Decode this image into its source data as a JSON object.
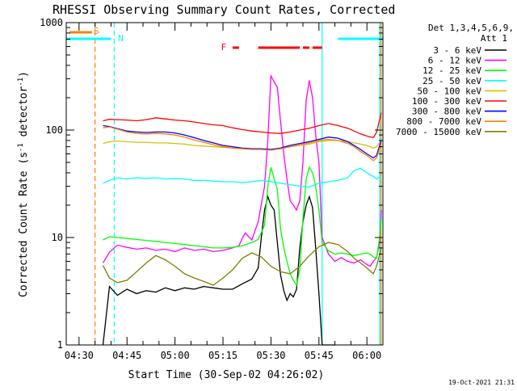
{
  "chart_data": {
    "type": "line",
    "title": "RHESSI Observing Summary Count Rates, Corrected",
    "xlabel": "Start Time (30-Sep-02 04:26:02)",
    "ylabel": "Corrected Count Rate (s⁻¹ detector⁻¹)",
    "ylabel_parts": {
      "main": "Corrected Count Rate (s",
      "exp1": "-1",
      "mid": " detector",
      "exp2": "-1",
      "end": ")"
    },
    "y_scale": "log",
    "ylim": [
      1,
      1000
    ],
    "xlim_minutes": [
      266,
      365
    ],
    "x_ticks": [
      {
        "label": "04:30",
        "min": 270
      },
      {
        "label": "04:45",
        "min": 285
      },
      {
        "label": "05:00",
        "min": 300
      },
      {
        "label": "05:15",
        "min": 315
      },
      {
        "label": "05:30",
        "min": 330
      },
      {
        "label": "05:45",
        "min": 345
      },
      {
        "label": "06:00",
        "min": 360
      }
    ],
    "y_ticks": [
      {
        "label": "1",
        "v": 1
      },
      {
        "label": "10",
        "v": 10
      },
      {
        "label": "100",
        "v": 100
      },
      {
        "label": "1000",
        "v": 1000
      }
    ],
    "detectors_line1": "Det 1,3,4,5,6,9,",
    "detectors_line2": "Att 1",
    "timestamp": "19-Oct-2021 21:31",
    "flags": {
      "saa_label": "S",
      "night_label": "N",
      "flare_label": "F",
      "night_segments": [
        [
          266,
          280
        ],
        [
          351,
          365
        ]
      ],
      "saa_segments": [
        [
          267,
          274
        ]
      ],
      "flare_segments": [
        [
          318,
          320
        ],
        [
          326,
          339
        ],
        [
          340,
          342
        ],
        [
          343,
          346
        ]
      ]
    },
    "markers": [
      {
        "kind": "saa_boundary",
        "min": 275,
        "color": "#ff8000",
        "style": "dashed"
      },
      {
        "kind": "night_boundary",
        "min": 281,
        "color": "#00ffff",
        "style": "dashed"
      },
      {
        "kind": "night_boundary",
        "min": 346,
        "color": "#00ffff",
        "style": "solid"
      },
      {
        "kind": "night_boundary",
        "min": 364,
        "color": "#00ffff",
        "style": "solid"
      },
      {
        "kind": "saa_boundary",
        "min": 364.4,
        "color": "#ff8000",
        "style": "solid"
      }
    ],
    "series": [
      {
        "name": "3 - 6 keV",
        "color": "#000000",
        "x": [
          277.5,
          279.5,
          282,
          285,
          288,
          291,
          294,
          297,
          300,
          303,
          306,
          309,
          312,
          315,
          318,
          321,
          324,
          326,
          327,
          328,
          329,
          330,
          331,
          332,
          333,
          334,
          335,
          336,
          337,
          338,
          339,
          340,
          341,
          342,
          343,
          344,
          345,
          346,
          347,
          348,
          349,
          350
        ],
        "y": [
          1,
          3.5,
          2.9,
          3.3,
          3,
          3.2,
          3.1,
          3.4,
          3.2,
          3.4,
          3.3,
          3.5,
          3.4,
          3.3,
          3.3,
          3.7,
          4.1,
          5.2,
          10,
          18,
          24,
          20,
          18,
          9,
          4.5,
          3.2,
          2.6,
          3,
          2.8,
          3.3,
          8,
          14,
          20,
          24,
          19,
          8,
          3,
          1,
          1,
          1,
          1,
          1
        ]
      },
      {
        "name": "6 - 12 keV",
        "color": "#ff00ff",
        "x": [
          277.5,
          279.5,
          282,
          285,
          288,
          291,
          294,
          297,
          300,
          303,
          306,
          309,
          312,
          315,
          318,
          320,
          321,
          322,
          324,
          326,
          328,
          329,
          330,
          331,
          332,
          333,
          334,
          335,
          336,
          337,
          338,
          339,
          340,
          341,
          342,
          343,
          344,
          345,
          346,
          348,
          350,
          352,
          354,
          356,
          358,
          360,
          361,
          362,
          363,
          364,
          364.5
        ],
        "y": [
          5.8,
          7.3,
          8.5,
          8.1,
          7.8,
          8,
          7.6,
          7.8,
          7.4,
          8,
          7.6,
          7.8,
          7.4,
          7.6,
          8,
          8.4,
          9.8,
          11,
          9.5,
          14,
          30,
          80,
          320,
          280,
          250,
          120,
          60,
          35,
          22,
          20,
          18,
          22,
          50,
          190,
          290,
          200,
          90,
          50,
          10,
          7,
          6,
          6.5,
          6,
          5.8,
          6.2,
          5.6,
          5.4,
          6,
          6.5,
          9,
          18
        ]
      },
      {
        "name": "12 - 25 keV",
        "color": "#00ff00",
        "x": [
          277.5,
          279.5,
          282,
          285,
          288,
          291,
          294,
          297,
          300,
          303,
          306,
          309,
          312,
          315,
          318,
          321,
          324,
          326,
          328,
          329,
          330,
          331,
          332,
          333,
          334,
          335,
          336,
          337,
          338,
          339,
          340,
          341,
          342,
          343,
          344,
          345,
          346,
          348,
          350,
          352,
          354,
          356,
          358,
          360,
          361,
          362,
          363,
          364,
          364.5
        ],
        "y": [
          9.5,
          10.2,
          10,
          9.8,
          9.6,
          9.4,
          9.2,
          9,
          8.8,
          8.6,
          8.4,
          8.2,
          8,
          8,
          8.1,
          8.4,
          9,
          9.6,
          13,
          30,
          45,
          35,
          28,
          12,
          8,
          6,
          4.6,
          4,
          3.6,
          5,
          15,
          35,
          45,
          40,
          30,
          18,
          9,
          7.5,
          7,
          7.2,
          7,
          6.8,
          7,
          7.2,
          7,
          6.6,
          6.4,
          10,
          15
        ]
      },
      {
        "name": "25 - 50 keV",
        "color": "#00ffff",
        "x": [
          277.5,
          279.5,
          282,
          285,
          288,
          291,
          294,
          297,
          300,
          303,
          306,
          309,
          312,
          315,
          318,
          321,
          324,
          327,
          330,
          333,
          336,
          339,
          342,
          345,
          348,
          351,
          354,
          356,
          358,
          360,
          362,
          363,
          364.5
        ],
        "y": [
          32,
          34,
          36,
          35,
          36,
          35.5,
          36,
          35,
          35.5,
          35,
          34,
          34,
          33.5,
          33,
          33,
          32.5,
          33,
          34,
          33,
          32,
          31,
          30,
          29.5,
          32,
          33,
          34,
          36,
          42,
          44,
          40,
          37,
          35,
          37
        ]
      },
      {
        "name": "50 - 100 keV",
        "color": "#d8c000",
        "x": [
          277.5,
          279.5,
          282,
          285,
          288,
          291,
          294,
          297,
          300,
          303,
          306,
          309,
          312,
          315,
          318,
          321,
          324,
          327,
          330,
          333,
          336,
          339,
          342,
          345,
          348,
          351,
          354,
          356,
          358,
          360,
          362,
          363,
          364.5
        ],
        "y": [
          75,
          78,
          79,
          78,
          77,
          77,
          76,
          76,
          75,
          74,
          72,
          71,
          70,
          69,
          68,
          67,
          67,
          66,
          66,
          67,
          70,
          72,
          74,
          78,
          80,
          80,
          78,
          76,
          74,
          72,
          68,
          70,
          80
        ]
      },
      {
        "name": "100 - 300 keV",
        "color": "#ff0000",
        "x": [
          277.5,
          279.5,
          282,
          285,
          288,
          291,
          294,
          297,
          300,
          303,
          306,
          309,
          312,
          315,
          318,
          321,
          324,
          327,
          330,
          333,
          336,
          339,
          342,
          345,
          348,
          351,
          354,
          356,
          358,
          360,
          362,
          363,
          364.5
        ],
        "y": [
          122,
          126,
          125,
          124,
          122,
          125,
          130,
          127,
          124,
          122,
          119,
          115,
          112,
          110,
          105,
          101,
          98,
          96,
          94,
          93,
          96,
          100,
          104,
          110,
          115,
          110,
          104,
          98,
          92,
          88,
          85,
          95,
          145
        ]
      },
      {
        "name": "300 - 800 keV",
        "color": "#0000ff",
        "x": [
          277.5,
          279.5,
          282,
          285,
          288,
          291,
          294,
          297,
          300,
          303,
          306,
          309,
          312,
          315,
          318,
          321,
          324,
          327,
          330,
          333,
          336,
          339,
          342,
          345,
          348,
          351,
          354,
          356,
          358,
          360,
          362,
          363,
          364.5
        ],
        "y": [
          110,
          108,
          103,
          98,
          96,
          95,
          96,
          96,
          94,
          90,
          85,
          80,
          76,
          72,
          70,
          68,
          67,
          67,
          66,
          68,
          72,
          75,
          78,
          82,
          86,
          84,
          78,
          72,
          66,
          60,
          55,
          58,
          80
        ]
      },
      {
        "name": "800 - 7000 keV",
        "color": "#ff8000",
        "x": [
          277.5,
          279.5,
          282,
          285,
          288,
          291,
          294,
          297,
          300,
          303,
          306,
          309,
          312,
          315,
          318,
          321,
          324,
          327,
          330,
          333,
          336,
          339,
          342,
          345,
          348,
          351,
          354,
          356,
          358,
          360,
          362,
          363,
          364.5
        ],
        "y": [
          105,
          107,
          102,
          96,
          93,
          92,
          93,
          92,
          90,
          86,
          81,
          77,
          73,
          70,
          68,
          67,
          66,
          66,
          65,
          67,
          70,
          73,
          76,
          80,
          82,
          80,
          75,
          70,
          63,
          58,
          52,
          55,
          75
        ]
      },
      {
        "name": "7000 - 15000 keV",
        "color": "#808000",
        "x": [
          277.5,
          279.5,
          282,
          285,
          288,
          291,
          294,
          297,
          300,
          303,
          306,
          309,
          312,
          315,
          318,
          321,
          324,
          327,
          330,
          333,
          336,
          339,
          342,
          345,
          348,
          351,
          354,
          356,
          358,
          360,
          362,
          363,
          364.5
        ],
        "y": [
          5.5,
          4.2,
          3.8,
          4,
          4.8,
          5.8,
          6.8,
          6.2,
          5.4,
          4.6,
          4.2,
          3.9,
          3.6,
          4.2,
          5,
          6.4,
          7.2,
          6.6,
          5.4,
          4.8,
          4.6,
          5.4,
          6.8,
          8.2,
          9,
          8.6,
          7.4,
          6.4,
          5.8,
          5.2,
          4.6,
          5.4,
          8
        ]
      }
    ]
  }
}
